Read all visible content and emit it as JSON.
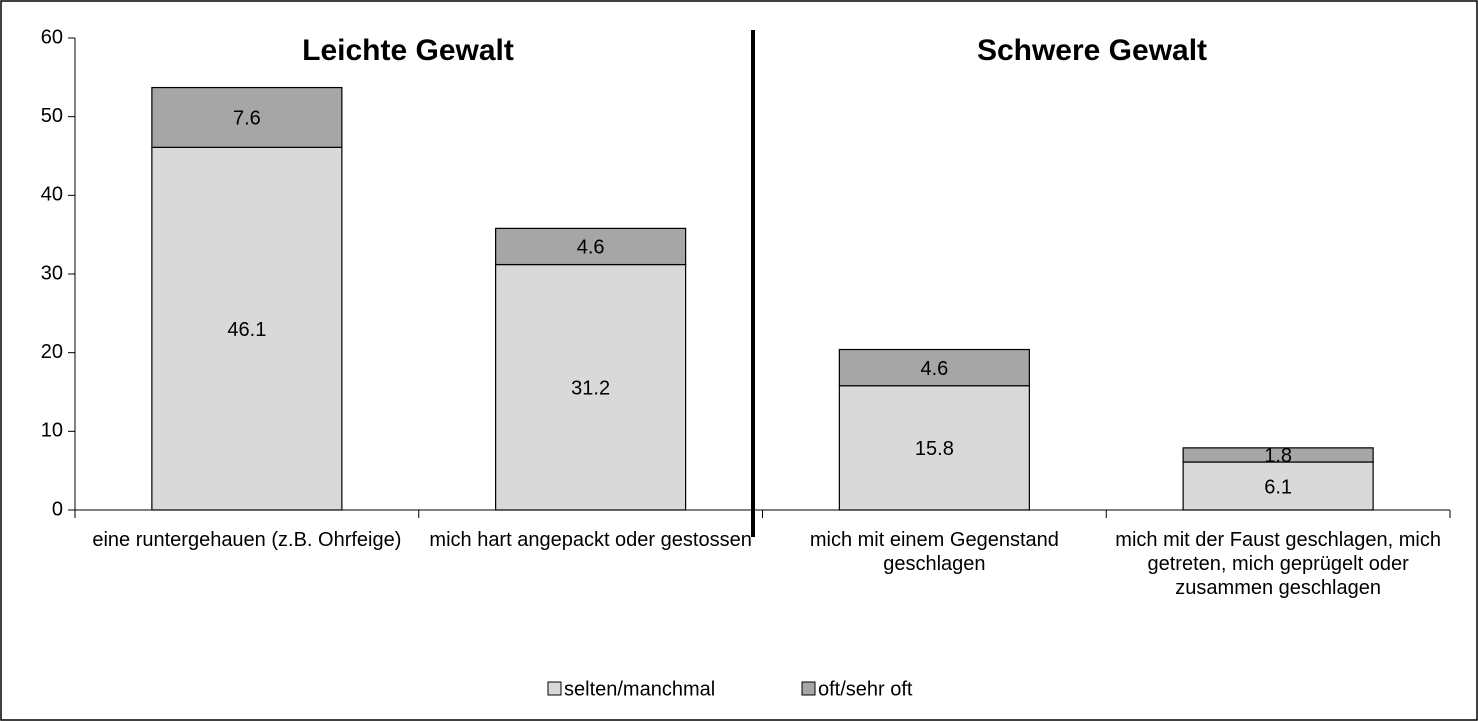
{
  "chart_data": {
    "type": "stacked_bar",
    "annotations": [
      "Leichte Gewalt",
      "Schwere Gewalt"
    ],
    "categories": [
      "eine runtergehauen (z.B. Ohrfeige)",
      "mich hart angepackt oder gestossen",
      "mich mit einem Gegenstand geschlagen",
      "mich mit der Faust geschlagen, mich getreten, mich geprügelt oder zusammen geschlagen"
    ],
    "series": [
      {
        "name": "selten/manchmal",
        "color": "#d9d9d9",
        "values": [
          46.1,
          31.2,
          15.8,
          6.1
        ]
      },
      {
        "name": "oft/sehr oft",
        "color": "#a6a6a6",
        "values": [
          7.6,
          4.6,
          4.6,
          1.8
        ]
      }
    ],
    "ylim": [
      0,
      60
    ],
    "yticks": [
      0,
      10,
      20,
      30,
      40,
      50,
      60
    ],
    "legend": "bottom"
  }
}
